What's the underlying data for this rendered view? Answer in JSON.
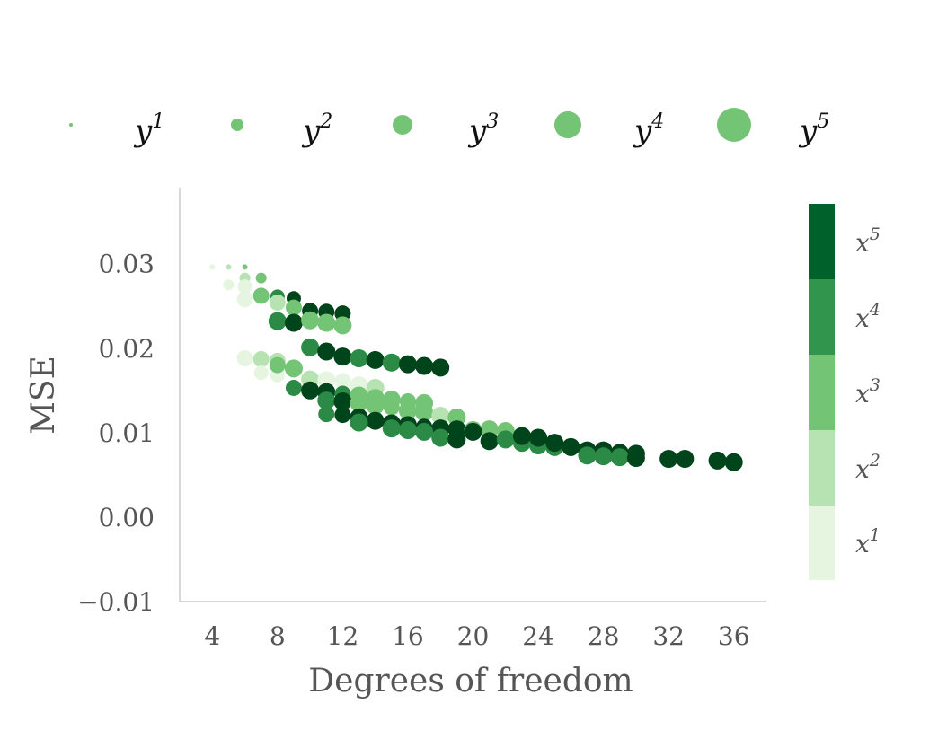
{
  "chart_data": {
    "type": "scatter",
    "title": "",
    "xlabel": "Degrees of freedom",
    "ylabel": "MSE",
    "xlim": [
      2,
      38
    ],
    "ylim": [
      -0.01,
      0.039
    ],
    "xticks": [
      4,
      8,
      12,
      16,
      20,
      24,
      28,
      32,
      36
    ],
    "xtick_labels": [
      "4",
      "8",
      "12",
      "16",
      "20",
      "24",
      "28",
      "32",
      "36"
    ],
    "yticks": [
      -0.01,
      0.0,
      0.01,
      0.02,
      0.03
    ],
    "ytick_labels": [
      "−0.01",
      "0.00",
      "0.01",
      "0.02",
      "0.03"
    ],
    "grid": false,
    "size_legend": {
      "placement": "top",
      "entries": [
        {
          "base": "y",
          "exp": "1",
          "size_level": 1
        },
        {
          "base": "y",
          "exp": "2",
          "size_level": 2
        },
        {
          "base": "y",
          "exp": "3",
          "size_level": 3
        },
        {
          "base": "y",
          "exp": "4",
          "size_level": 4
        },
        {
          "base": "y",
          "exp": "5",
          "size_level": 5
        }
      ],
      "color": "#74c476"
    },
    "colorbar": {
      "placement": "right",
      "entries": [
        {
          "base": "x",
          "exp": "1",
          "color": "#e5f5e0"
        },
        {
          "base": "x",
          "exp": "2",
          "color": "#b7e2b1"
        },
        {
          "base": "x",
          "exp": "3",
          "color": "#74c476"
        },
        {
          "base": "x",
          "exp": "4",
          "color": "#31954e"
        },
        {
          "base": "x",
          "exp": "5",
          "color": "#00612a"
        }
      ]
    },
    "point_colors": {
      "1": "#e5f5e0",
      "2": "#b7e2b1",
      "3": "#74c476",
      "4": "#2b8a45",
      "5": "#00441b"
    },
    "points": [
      [
        4,
        0.0296,
        1,
        1
      ],
      [
        5,
        0.0296,
        2,
        1
      ],
      [
        6,
        0.0296,
        3,
        1
      ],
      [
        5,
        0.0275,
        1,
        2
      ],
      [
        6,
        0.0283,
        2,
        2
      ],
      [
        7,
        0.0283,
        3,
        2
      ],
      [
        6,
        0.0273,
        1,
        3
      ],
      [
        7,
        0.0261,
        2,
        3
      ],
      [
        8,
        0.0261,
        4,
        3
      ],
      [
        9,
        0.0259,
        5,
        3
      ],
      [
        6,
        0.0258,
        1,
        4
      ],
      [
        7,
        0.0262,
        3,
        4
      ],
      [
        8,
        0.0254,
        2,
        4
      ],
      [
        9,
        0.0248,
        3,
        4
      ],
      [
        10,
        0.0244,
        5,
        4
      ],
      [
        11,
        0.0243,
        5,
        4
      ],
      [
        12,
        0.0241,
        5,
        4
      ],
      [
        8,
        0.0232,
        4,
        5
      ],
      [
        9,
        0.023,
        5,
        5
      ],
      [
        10,
        0.0233,
        3,
        5
      ],
      [
        11,
        0.023,
        3,
        5
      ],
      [
        12,
        0.0227,
        3,
        5
      ],
      [
        10,
        0.0201,
        4,
        5
      ],
      [
        11,
        0.0196,
        5,
        5
      ],
      [
        12,
        0.019,
        5,
        5
      ],
      [
        13,
        0.0188,
        4,
        5
      ],
      [
        14,
        0.0186,
        5,
        5
      ],
      [
        15,
        0.0183,
        4,
        5
      ],
      [
        16,
        0.0181,
        5,
        5
      ],
      [
        17,
        0.0179,
        5,
        5
      ],
      [
        18,
        0.0177,
        5,
        5
      ],
      [
        6,
        0.0188,
        1,
        4
      ],
      [
        7,
        0.0187,
        2,
        4
      ],
      [
        8,
        0.0185,
        2,
        4
      ],
      [
        7,
        0.0171,
        1,
        3
      ],
      [
        8,
        0.0168,
        1,
        3
      ],
      [
        8,
        0.018,
        3,
        4
      ],
      [
        9,
        0.0176,
        3,
        5
      ],
      [
        10,
        0.0163,
        2,
        5
      ],
      [
        11,
        0.0162,
        1,
        5
      ],
      [
        12,
        0.0161,
        1,
        4
      ],
      [
        13,
        0.0156,
        1,
        5
      ],
      [
        14,
        0.0153,
        2,
        5
      ],
      [
        9,
        0.0153,
        4,
        4
      ],
      [
        10,
        0.015,
        5,
        5
      ],
      [
        11,
        0.0148,
        5,
        5
      ],
      [
        12,
        0.0146,
        4,
        4
      ],
      [
        13,
        0.0144,
        3,
        5
      ],
      [
        14,
        0.0141,
        3,
        5
      ],
      [
        15,
        0.0139,
        3,
        5
      ],
      [
        16,
        0.0137,
        3,
        4
      ],
      [
        17,
        0.0135,
        3,
        5
      ],
      [
        11,
        0.0138,
        4,
        5
      ],
      [
        12,
        0.0137,
        5,
        5
      ],
      [
        13,
        0.0135,
        3,
        5
      ],
      [
        14,
        0.0132,
        3,
        5
      ],
      [
        15,
        0.013,
        3,
        4
      ],
      [
        16,
        0.0126,
        3,
        5
      ],
      [
        17,
        0.0124,
        3,
        5
      ],
      [
        18,
        0.012,
        2,
        5
      ],
      [
        19,
        0.0118,
        3,
        5
      ],
      [
        11,
        0.0122,
        4,
        4
      ],
      [
        12,
        0.0121,
        5,
        4
      ],
      [
        13,
        0.0118,
        5,
        5
      ],
      [
        14,
        0.0114,
        5,
        5
      ],
      [
        15,
        0.0111,
        5,
        5
      ],
      [
        16,
        0.0109,
        5,
        5
      ],
      [
        17,
        0.0107,
        5,
        4
      ],
      [
        18,
        0.0105,
        5,
        5
      ],
      [
        19,
        0.0104,
        5,
        5
      ],
      [
        20,
        0.0103,
        3,
        5
      ],
      [
        21,
        0.0104,
        3,
        5
      ],
      [
        22,
        0.0102,
        3,
        5
      ],
      [
        13,
        0.0112,
        4,
        5
      ],
      [
        15,
        0.0105,
        4,
        5
      ],
      [
        16,
        0.0103,
        4,
        5
      ],
      [
        17,
        0.0101,
        4,
        5
      ],
      [
        18,
        0.0094,
        4,
        5
      ],
      [
        19,
        0.0092,
        5,
        5
      ],
      [
        20,
        0.0101,
        5,
        5
      ],
      [
        21,
        0.009,
        5,
        5
      ],
      [
        22,
        0.0092,
        4,
        5
      ],
      [
        23,
        0.0088,
        4,
        5
      ],
      [
        24,
        0.0085,
        4,
        5
      ],
      [
        25,
        0.0083,
        4,
        5
      ],
      [
        23,
        0.0096,
        5,
        5
      ],
      [
        24,
        0.0094,
        5,
        5
      ],
      [
        25,
        0.0088,
        5,
        5
      ],
      [
        26,
        0.0083,
        5,
        5
      ],
      [
        27,
        0.0079,
        5,
        5
      ],
      [
        28,
        0.0079,
        5,
        5
      ],
      [
        29,
        0.0076,
        5,
        5
      ],
      [
        30,
        0.0075,
        5,
        5
      ],
      [
        27,
        0.0073,
        4,
        5
      ],
      [
        28,
        0.0072,
        4,
        5
      ],
      [
        29,
        0.0071,
        4,
        5
      ],
      [
        30,
        0.007,
        5,
        5
      ],
      [
        32,
        0.0069,
        5,
        5
      ],
      [
        33,
        0.0069,
        5,
        5
      ],
      [
        35,
        0.0067,
        5,
        5
      ],
      [
        36,
        0.0065,
        5,
        5
      ]
    ]
  }
}
